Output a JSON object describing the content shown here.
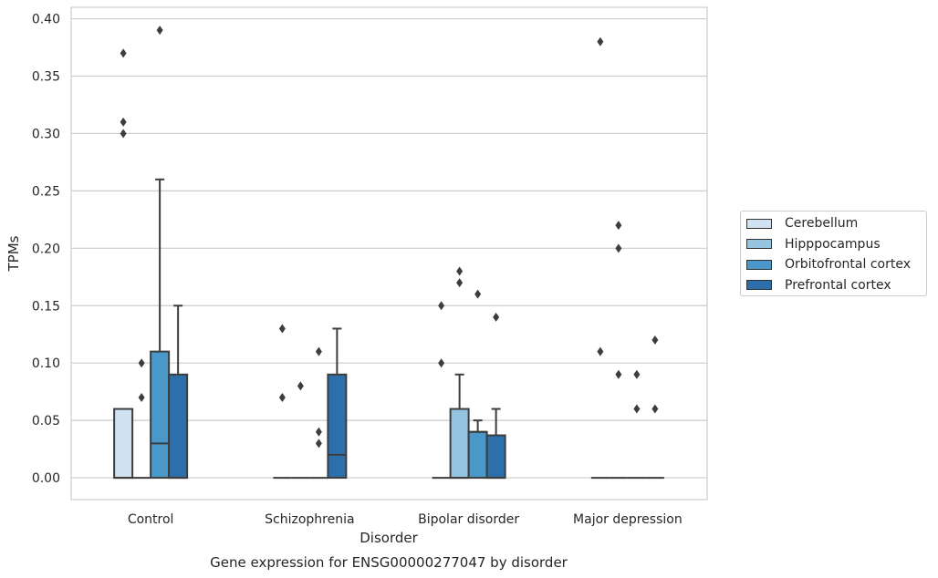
{
  "chart_data": {
    "type": "box",
    "title": "Gene expression for ENSG00000277047 by disorder",
    "xlabel": "Disorder",
    "ylabel": "TPMs",
    "ylim": [
      -0.019,
      0.41
    ],
    "yticks": [
      "0.00",
      "0.05",
      "0.10",
      "0.15",
      "0.20",
      "0.25",
      "0.30",
      "0.35",
      "0.40"
    ],
    "grid": "horizontal",
    "legend_position": "right",
    "categories": [
      "Control",
      "Schizophrenia",
      "Bipolar disorder",
      "Major depression"
    ],
    "series": [
      {
        "name": "Cerebellum",
        "color": "#d0e1f2",
        "boxes": [
          {
            "q1": 0,
            "median": 0,
            "q3": 0.06,
            "whisker_low": 0,
            "whisker_high": 0.06,
            "outliers": [
              0.3,
              0.31,
              0.37
            ]
          },
          {
            "q1": 0,
            "median": 0,
            "q3": 0,
            "whisker_low": 0,
            "whisker_high": 0,
            "outliers": [
              0.07,
              0.13
            ]
          },
          {
            "q1": 0,
            "median": 0,
            "q3": 0,
            "whisker_low": 0,
            "whisker_high": 0,
            "outliers": [
              0.1,
              0.15
            ]
          },
          {
            "q1": 0,
            "median": 0,
            "q3": 0,
            "whisker_low": 0,
            "whisker_high": 0,
            "outliers": [
              0.11,
              0.38
            ]
          }
        ]
      },
      {
        "name": "Hipppocampus",
        "color": "#94c4df",
        "boxes": [
          {
            "q1": 0,
            "median": 0,
            "q3": 0,
            "whisker_low": 0,
            "whisker_high": 0,
            "outliers": [
              0.07,
              0.1
            ]
          },
          {
            "q1": 0,
            "median": 0,
            "q3": 0,
            "whisker_low": 0,
            "whisker_high": 0,
            "outliers": [
              0.08
            ]
          },
          {
            "q1": 0,
            "median": 0,
            "q3": 0.06,
            "whisker_low": 0,
            "whisker_high": 0.09,
            "outliers": [
              0.17,
              0.18
            ]
          },
          {
            "q1": 0,
            "median": 0,
            "q3": 0,
            "whisker_low": 0,
            "whisker_high": 0,
            "outliers": [
              0.09,
              0.2,
              0.22
            ]
          }
        ]
      },
      {
        "name": "Orbitofrontal cortex",
        "color": "#4a98c9",
        "boxes": [
          {
            "q1": 0,
            "median": 0.03,
            "q3": 0.11,
            "whisker_low": 0,
            "whisker_high": 0.26,
            "outliers": [
              0.39
            ]
          },
          {
            "q1": 0,
            "median": 0,
            "q3": 0,
            "whisker_low": 0,
            "whisker_high": 0,
            "outliers": [
              0.03,
              0.04,
              0.11
            ]
          },
          {
            "q1": 0,
            "median": 0.04,
            "q3": 0.04,
            "whisker_low": 0,
            "whisker_high": 0.05,
            "outliers": [
              0.16
            ]
          },
          {
            "q1": 0,
            "median": 0,
            "q3": 0,
            "whisker_low": 0,
            "whisker_high": 0,
            "outliers": [
              0.06,
              0.09
            ]
          }
        ]
      },
      {
        "name": "Prefrontal cortex",
        "color": "#2d6faa",
        "boxes": [
          {
            "q1": 0,
            "median": 0,
            "q3": 0.09,
            "whisker_low": 0,
            "whisker_high": 0.15,
            "outliers": []
          },
          {
            "q1": 0,
            "median": 0.02,
            "q3": 0.09,
            "whisker_low": 0,
            "whisker_high": 0.13,
            "outliers": []
          },
          {
            "q1": 0,
            "median": 0,
            "q3": 0.037,
            "whisker_low": 0,
            "whisker_high": 0.06,
            "outliers": [
              0.14
            ]
          },
          {
            "q1": 0,
            "median": 0,
            "q3": 0,
            "whisker_low": 0,
            "whisker_high": 0,
            "outliers": [
              0.06,
              0.12
            ]
          }
        ]
      }
    ]
  }
}
